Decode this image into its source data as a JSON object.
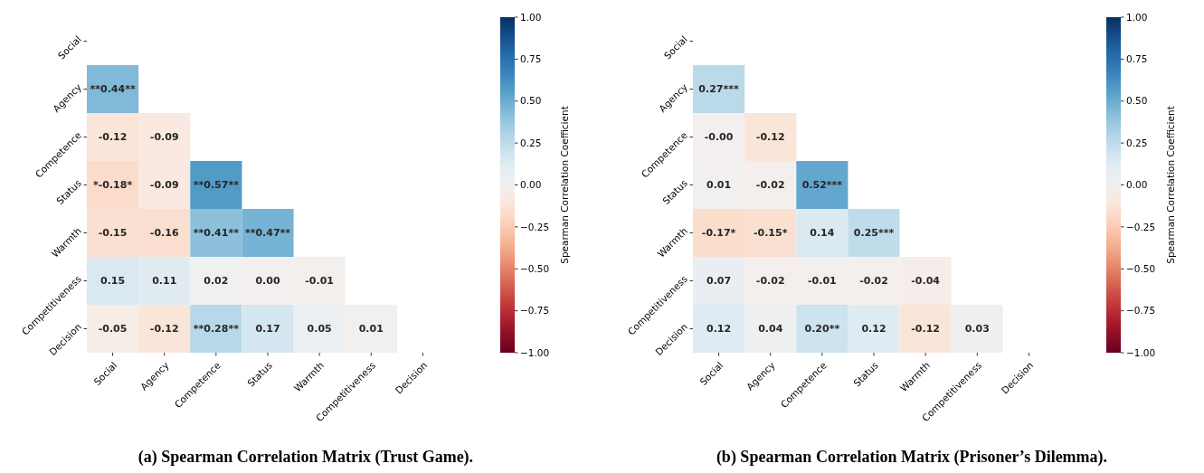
{
  "chart_data": [
    {
      "type": "heatmap",
      "title": "(a) Spearman Correlation Matrix (Trust Game).",
      "clabel": "Spearman Correlation Coefficient",
      "categories": [
        "Social",
        "Agency",
        "Competence",
        "Status",
        "Warmth",
        "Competitiveness",
        "Decision"
      ],
      "y_categories": [
        "Social",
        "Agency",
        "Competence",
        "Status",
        "Warmth",
        "Competitiveness",
        "Decision"
      ],
      "cells": [
        [
          null,
          null,
          null,
          null,
          null,
          null,
          null
        ],
        [
          0.44,
          null,
          null,
          null,
          null,
          null,
          null
        ],
        [
          -0.12,
          -0.09,
          null,
          null,
          null,
          null,
          null
        ],
        [
          -0.18,
          -0.09,
          0.57,
          null,
          null,
          null,
          null
        ],
        [
          -0.15,
          -0.16,
          0.41,
          0.47,
          null,
          null,
          null
        ],
        [
          0.15,
          0.11,
          0.02,
          0.0,
          -0.01,
          null,
          null
        ],
        [
          -0.05,
          -0.12,
          0.28,
          0.17,
          0.05,
          0.01,
          null
        ]
      ],
      "cell_labels": [
        [
          null,
          null,
          null,
          null,
          null,
          null,
          null
        ],
        [
          "**0.44**",
          null,
          null,
          null,
          null,
          null,
          null
        ],
        [
          "-0.12",
          "-0.09",
          null,
          null,
          null,
          null,
          null
        ],
        [
          "*-0.18*",
          "-0.09",
          "**0.57**",
          null,
          null,
          null,
          null
        ],
        [
          "-0.15",
          "-0.16",
          "**0.41**",
          "**0.47**",
          null,
          null,
          null
        ],
        [
          "0.15",
          "0.11",
          "0.02",
          "0.00",
          "-0.01",
          null,
          null
        ],
        [
          "-0.05",
          "-0.12",
          "**0.28**",
          "0.17",
          "0.05",
          "0.01",
          null
        ]
      ],
      "clim": [
        -1,
        1
      ],
      "cticks": [
        {
          "value": -1,
          "label": "−1.00"
        },
        {
          "value": -0.75,
          "label": "−0.75"
        },
        {
          "value": -0.5,
          "label": "−0.50"
        },
        {
          "value": -0.25,
          "label": "−0.25"
        },
        {
          "value": 0,
          "label": "0.00"
        },
        {
          "value": 0.25,
          "label": "0.25"
        },
        {
          "value": 0.5,
          "label": "0.50"
        },
        {
          "value": 0.75,
          "label": "0.75"
        },
        {
          "value": 1,
          "label": "1.00"
        }
      ]
    },
    {
      "type": "heatmap",
      "title": "(b) Spearman Correlation Matrix (Prisoner’s Dilemma).",
      "clabel": "Spearman Correlation Coefficient",
      "categories": [
        "Social",
        "Agency",
        "Competence",
        "Status",
        "Warmth",
        "Competitiveness",
        "Decision"
      ],
      "y_categories": [
        "Social",
        "Agency",
        "Competence",
        "Status",
        "Warmth",
        "Competitiveness",
        "Decision"
      ],
      "cells": [
        [
          null,
          null,
          null,
          null,
          null,
          null,
          null
        ],
        [
          0.27,
          null,
          null,
          null,
          null,
          null,
          null
        ],
        [
          0.0,
          -0.12,
          null,
          null,
          null,
          null,
          null
        ],
        [
          0.01,
          -0.02,
          0.52,
          null,
          null,
          null,
          null
        ],
        [
          -0.17,
          -0.15,
          0.14,
          0.25,
          null,
          null,
          null
        ],
        [
          0.07,
          -0.02,
          -0.01,
          -0.02,
          -0.04,
          null,
          null
        ],
        [
          0.12,
          0.04,
          0.2,
          0.12,
          -0.12,
          0.03,
          null
        ]
      ],
      "cell_labels": [
        [
          null,
          null,
          null,
          null,
          null,
          null,
          null
        ],
        [
          "0.27***",
          null,
          null,
          null,
          null,
          null,
          null
        ],
        [
          "-0.00",
          "-0.12",
          null,
          null,
          null,
          null,
          null
        ],
        [
          "0.01",
          "-0.02",
          "0.52***",
          null,
          null,
          null,
          null
        ],
        [
          "-0.17*",
          "-0.15*",
          "0.14",
          "0.25***",
          null,
          null,
          null
        ],
        [
          "0.07",
          "-0.02",
          "-0.01",
          "-0.02",
          "-0.04",
          null,
          null
        ],
        [
          "0.12",
          "0.04",
          "0.20**",
          "0.12",
          "-0.12",
          "0.03",
          null
        ]
      ],
      "clim": [
        -1,
        1
      ],
      "cticks": [
        {
          "value": -1,
          "label": "−1.00"
        },
        {
          "value": -0.75,
          "label": "−0.75"
        },
        {
          "value": -0.5,
          "label": "−0.50"
        },
        {
          "value": -0.25,
          "label": "−0.25"
        },
        {
          "value": 0,
          "label": "0.00"
        },
        {
          "value": 0.25,
          "label": "0.25"
        },
        {
          "value": 0.5,
          "label": "0.50"
        },
        {
          "value": 0.75,
          "label": "0.75"
        },
        {
          "value": 1,
          "label": "1.00"
        }
      ]
    }
  ]
}
